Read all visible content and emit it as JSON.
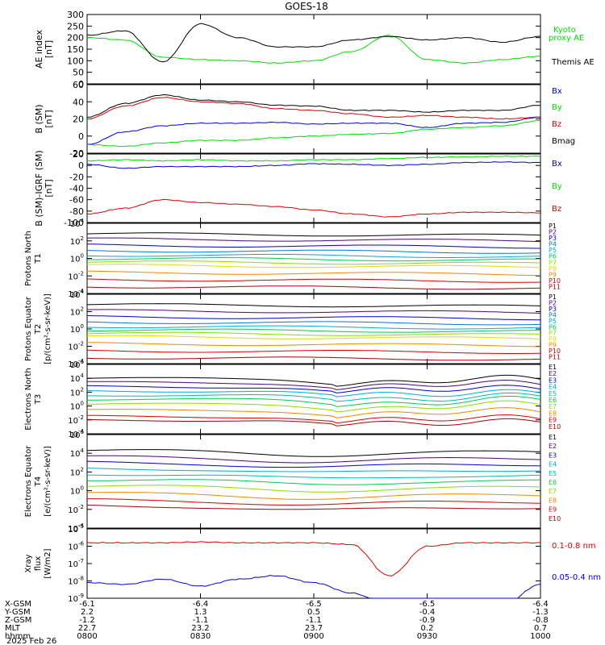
{
  "title": "GOES-18",
  "date_label": "2025 Feb 26",
  "colors": {
    "black": "#000000",
    "green": "#00dd00",
    "blue": "#0000dd",
    "red": "#dd0000",
    "p_colors": [
      "#000000",
      "#550077",
      "#0000cc",
      "#0077dd",
      "#00aadd",
      "#00bbaa",
      "#00cc55",
      "#88dd00",
      "#dddd00",
      "#ee8800",
      "#dd0000",
      "#aa0000"
    ]
  },
  "ephemeris": {
    "row_labels": [
      "X-GSM",
      "Y-GSM",
      "Z-GSM",
      "MLT",
      "hhmm"
    ],
    "columns": [
      {
        "x": "-6.1",
        "y": "2.2",
        "z": "-1.2",
        "mlt": "22.7",
        "hhmm": "0800"
      },
      {
        "x": "-6.4",
        "y": "1.3",
        "z": "-1.1",
        "mlt": "23.2",
        "hhmm": "0830"
      },
      {
        "x": "-6.5",
        "y": "0.5",
        "z": "-1.1",
        "mlt": "23.7",
        "hhmm": "0900"
      },
      {
        "x": "-6.5",
        "y": "-0.4",
        "z": "-0.9",
        "mlt": "0.2",
        "hhmm": "0930"
      },
      {
        "x": "-6.4",
        "y": "-1.3",
        "z": "-0.8",
        "mlt": "0.7",
        "hhmm": "1000"
      }
    ]
  },
  "chart_data": [
    {
      "type": "line",
      "panel": "ae",
      "ylabel": "AE index [nT]",
      "ylim": [
        0,
        300
      ],
      "yticks": [
        "0",
        "50",
        "100",
        "150",
        "200",
        "250",
        "300"
      ],
      "x": [
        "0800",
        "0810",
        "0820",
        "0830",
        "0840",
        "0850",
        "0900",
        "0910",
        "0920",
        "0930",
        "0940",
        "0950",
        "1000"
      ],
      "series": [
        {
          "name": "Kyoto proxy AE",
          "values": [
            200,
            190,
            115,
            105,
            100,
            90,
            100,
            140,
            210,
            105,
            90,
            105,
            120
          ]
        },
        {
          "name": "Themis AE",
          "values": [
            210,
            230,
            95,
            260,
            200,
            160,
            160,
            190,
            205,
            190,
            200,
            180,
            205
          ]
        }
      ],
      "legend": [
        "Kyoto",
        "proxy AE",
        "Themis AE"
      ]
    },
    {
      "type": "line",
      "panel": "bsm",
      "ylabel": "B (SM) [nT]",
      "ylim": [
        -20,
        60
      ],
      "yticks": [
        "-20",
        "0",
        "20",
        "40",
        "60"
      ],
      "series": [
        {
          "name": "Bx",
          "values": [
            -10,
            5,
            12,
            15,
            15,
            16,
            14,
            15,
            15,
            10,
            15,
            16,
            22
          ]
        },
        {
          "name": "By",
          "values": [
            -10,
            -12,
            -8,
            -5,
            -5,
            -2,
            0,
            2,
            3,
            8,
            10,
            12,
            18
          ]
        },
        {
          "name": "Bz",
          "values": [
            20,
            35,
            45,
            40,
            38,
            32,
            30,
            26,
            22,
            24,
            22,
            20,
            22
          ]
        },
        {
          "name": "Bmag",
          "values": [
            22,
            38,
            48,
            42,
            40,
            36,
            35,
            30,
            30,
            28,
            30,
            30,
            36
          ]
        }
      ],
      "legend": [
        "Bx",
        "By",
        "Bz",
        "Bmag"
      ]
    },
    {
      "type": "line",
      "panel": "bigrf",
      "ylabel": "B (SM)-IGRF (SM) [nT]",
      "ylim": [
        -100,
        20
      ],
      "yticks": [
        "-100",
        "-80",
        "-60",
        "-40",
        "-20",
        "0",
        "20"
      ],
      "series": [
        {
          "name": "Bx",
          "values": [
            2,
            -5,
            -2,
            -2,
            -2,
            0,
            3,
            2,
            0,
            2,
            5,
            6,
            5
          ]
        },
        {
          "name": "By",
          "values": [
            8,
            10,
            8,
            10,
            8,
            8,
            10,
            10,
            12,
            14,
            15,
            16,
            16
          ]
        },
        {
          "name": "Bz",
          "values": [
            -85,
            -75,
            -60,
            -65,
            -68,
            -72,
            -78,
            -85,
            -90,
            -85,
            -82,
            -82,
            -83
          ]
        }
      ],
      "legend": [
        "Bx",
        "By",
        "Bz"
      ]
    },
    {
      "type": "line",
      "panel": "p1",
      "log": true,
      "ylabel": "Protons North T1",
      "ylim_exp": [
        -4,
        4
      ],
      "yticks_exp": [
        -4,
        -2,
        0,
        2,
        4
      ],
      "channels": [
        "P1",
        "P2",
        "P3",
        "P4",
        "P5",
        "P6",
        "P7",
        "P8",
        "P9",
        "P10",
        "P11"
      ],
      "levels_exp": [
        2.8,
        2.2,
        1.5,
        0.9,
        0.4,
        0.0,
        -0.4,
        -0.8,
        -1.6,
        -2.4,
        -3.2
      ]
    },
    {
      "type": "line",
      "panel": "p2",
      "log": true,
      "ylabel": "Protons Equator T2 [p/(cm²-s-sr-keV)]",
      "ylim_exp": [
        -4,
        4
      ],
      "yticks_exp": [
        -4,
        -2,
        0,
        2,
        4
      ],
      "channels": [
        "P1",
        "P2",
        "P3",
        "P4",
        "P5",
        "P6",
        "P7",
        "P8",
        "P9",
        "P10",
        "P11"
      ],
      "levels_exp": [
        2.8,
        2.1,
        1.4,
        0.8,
        0.3,
        -0.1,
        -0.5,
        -0.9,
        -1.7,
        -2.5,
        -3.3
      ]
    },
    {
      "type": "line",
      "panel": "e1",
      "log": true,
      "ylabel": "Electrons North T3",
      "ylim_exp": [
        -4,
        6
      ],
      "yticks_exp": [
        -4,
        -2,
        0,
        2,
        4,
        6
      ],
      "channels": [
        "E1",
        "E2",
        "E3",
        "E4",
        "E5",
        "E6",
        "E7",
        "E8",
        "E9",
        "E10"
      ],
      "levels_exp": [
        4.0,
        3.4,
        2.8,
        2.2,
        1.6,
        1.0,
        0.3,
        -0.6,
        -1.5,
        -2.0
      ]
    },
    {
      "type": "line",
      "panel": "e2",
      "log": true,
      "ylabel": "Electrons Equator T4 [e/(cm²-s-sr-keV)]",
      "ylim_exp": [
        -4,
        6
      ],
      "yticks_exp": [
        -4,
        -2,
        0,
        2,
        4,
        6
      ],
      "channels": [
        "E1",
        "E2",
        "E3",
        "E4",
        "E5",
        "E6",
        "E7",
        "E8",
        "E9",
        "E10"
      ],
      "levels_exp": [
        4.3,
        3.6,
        3.0,
        2.4,
        1.8,
        1.2,
        0.5,
        -0.3,
        -1.0,
        -1.6
      ]
    },
    {
      "type": "line",
      "panel": "xray",
      "log": true,
      "ylabel": "Xray flux [W/m2]",
      "ylim_exp": [
        -9,
        -5
      ],
      "yticks_exp": [
        -9,
        -8,
        -7,
        -6,
        -5
      ],
      "series": [
        {
          "name": "0.1-0.8 nm",
          "values_exp": [
            -5.8,
            -5.8,
            -5.8,
            -5.75,
            -5.8,
            -5.8,
            -5.8,
            -5.9,
            -7.7,
            -6.0,
            -5.8,
            -5.8,
            -5.8
          ]
        },
        {
          "name": "0.05-0.4 nm",
          "values_exp": [
            -8.1,
            -8.2,
            -7.9,
            -8.3,
            -7.9,
            -7.7,
            -8.1,
            -8.7,
            -9.4,
            -9.4,
            -9.4,
            -9.4,
            -8.2
          ]
        }
      ],
      "legend": [
        "0.1-0.8 nm",
        "0.05-0.4 nm"
      ]
    }
  ]
}
